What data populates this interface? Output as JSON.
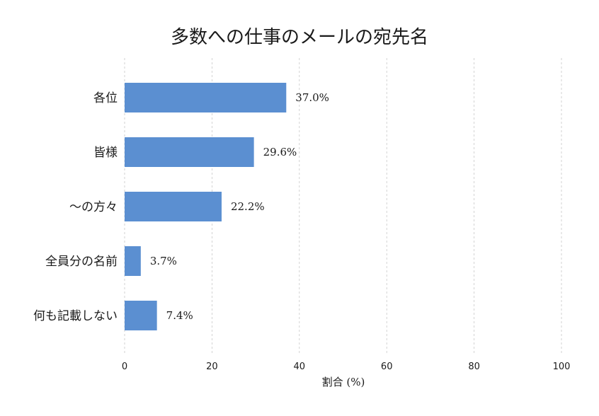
{
  "chart_data": {
    "type": "bar",
    "orientation": "horizontal",
    "title": "多数への仕事のメールの宛先名",
    "xlabel": "割合 (%)",
    "ylabel": "",
    "categories": [
      "各位",
      "皆様",
      "〜の方々",
      "全員分の名前",
      "何も記載しない"
    ],
    "values": [
      37.0,
      29.6,
      22.2,
      3.7,
      7.4
    ],
    "value_labels": [
      "37.0%",
      "29.6%",
      "22.2%",
      "3.7%",
      "7.4%"
    ],
    "xlim": [
      0,
      100
    ],
    "xticks": [
      0,
      20,
      40,
      60,
      80,
      100
    ],
    "grid": "vertical-dashed",
    "bar_color": "#5b8fd1"
  }
}
